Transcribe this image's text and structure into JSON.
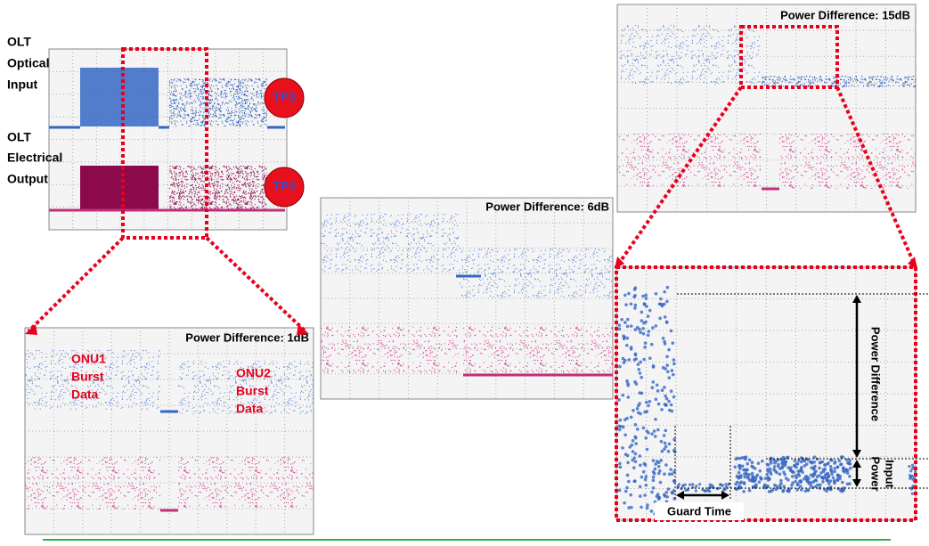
{
  "labels": {
    "olt_optical_input": [
      "OLT",
      "Optical",
      "Input"
    ],
    "olt_electrical_output": [
      "OLT",
      "Electrical",
      "Output"
    ],
    "tp3": "TP3",
    "tp4": "TP4"
  },
  "scopes": [
    {
      "title": "Power Difference: 15dB"
    },
    {
      "title": "Power Difference: 6dB"
    },
    {
      "title": "Power Difference: 1dB",
      "annotations": [
        [
          "ONU1",
          "Burst",
          "Data"
        ],
        [
          "ONU2",
          "Burst",
          "Data"
        ]
      ]
    }
  ],
  "zoom": {
    "power_difference": "Power Difference",
    "input_power": [
      "Input",
      "Power"
    ],
    "guard_time": "Guard Time"
  }
}
